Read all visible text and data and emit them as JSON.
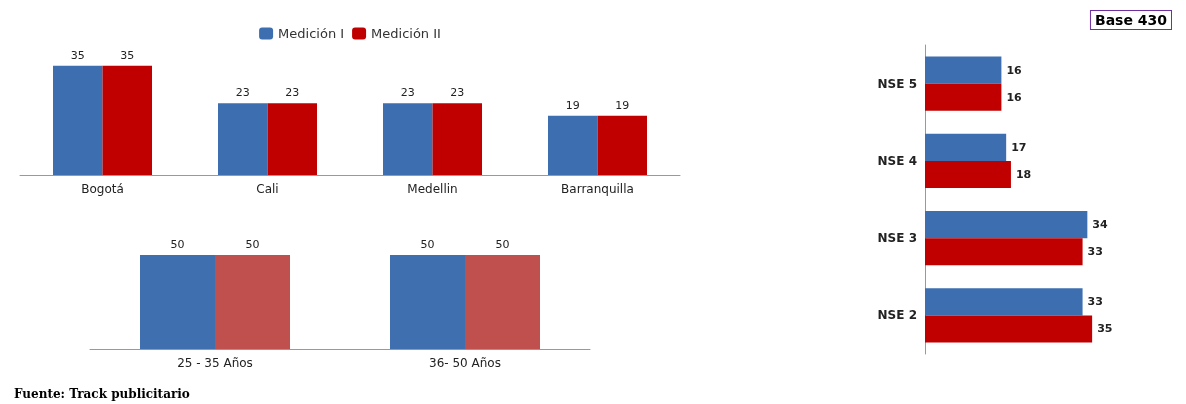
{
  "chart_data": [
    {
      "type": "bar",
      "categories": [
        "Bogotá",
        "Cali",
        "Medellin",
        "Barranquilla"
      ],
      "series": [
        {
          "name": "Medición I",
          "color": "#3d6fb0",
          "values": [
            35,
            23,
            23,
            19
          ]
        },
        {
          "name": "Medición II",
          "color": "#c00000",
          "values": [
            35,
            23,
            23,
            19
          ]
        }
      ],
      "data_labels": true,
      "legend": "top"
    },
    {
      "type": "bar",
      "categories": [
        "25 - 35 Años",
        "36- 50 Años"
      ],
      "series": [
        {
          "color": "#3f6fae",
          "values": [
            50,
            50
          ]
        },
        {
          "color": "#c0504d",
          "values": [
            50,
            50
          ]
        }
      ],
      "data_labels": true,
      "annotations": [
        "Fuente: Track publicitario"
      ]
    },
    {
      "type": "bar",
      "orientation": "horizontal",
      "categories": [
        "NSE 5",
        "NSE 4",
        "NSE 3",
        "NSE 2"
      ],
      "series": [
        {
          "color": "#3d6fb0",
          "values": [
            16,
            17,
            34,
            33
          ]
        },
        {
          "color": "#c00000",
          "values": [
            16,
            18,
            33,
            35
          ]
        }
      ],
      "data_labels": true,
      "annotations": [
        "Base 430"
      ]
    }
  ]
}
